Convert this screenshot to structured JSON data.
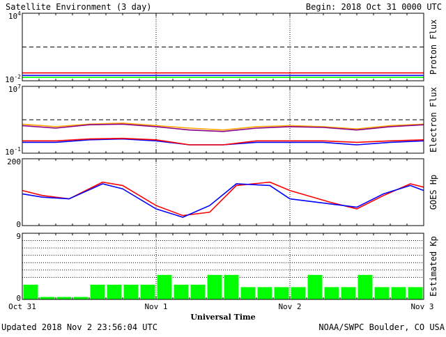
{
  "header": {
    "title": "Satellite Environment (3 day)",
    "begin": "Begin:  2018 Oct 31 0000 UTC"
  },
  "footer": {
    "updated": "Updated 2018 Nov  2 23:56:04 UTC",
    "credit": "NOAA/SWPC Boulder, CO USA"
  },
  "x_axis": {
    "label": "Universal Time",
    "ticks": [
      "Oct 31",
      "Nov 1",
      "Nov 2",
      "Nov 3"
    ]
  },
  "colors": {
    "red": "#ff0000",
    "blue": "#0000ff",
    "green": "#00ff00",
    "orange": "#ffa500",
    "purple": "#8b008b",
    "axis": "#000000"
  },
  "chart_data": [
    {
      "type": "line",
      "panel": "proton",
      "ylabel": "Proton Flux",
      "yscale": "log",
      "ylim": [
        0.01,
        10000
      ],
      "y_tick_labels": [
        {
          "base": "10",
          "exp": "4"
        },
        {
          "base": "10",
          "exp": "-2"
        }
      ],
      "threshold": 10,
      "series": [
        {
          "color": "red",
          "x": [
            0,
            0.5,
            1,
            1.5,
            2,
            2.5,
            3
          ],
          "y": [
            0.05,
            0.05,
            0.05,
            0.05,
            0.05,
            0.05,
            0.05
          ]
        },
        {
          "color": "blue",
          "x": [
            0,
            0.5,
            1,
            1.5,
            2,
            2.5,
            3
          ],
          "y": [
            0.03,
            0.03,
            0.03,
            0.03,
            0.03,
            0.03,
            0.03
          ]
        },
        {
          "color": "green",
          "x": [
            0,
            0.5,
            1,
            1.5,
            2,
            2.5,
            3
          ],
          "y": [
            0.02,
            0.02,
            0.02,
            0.02,
            0.02,
            0.02,
            0.02
          ]
        }
      ]
    },
    {
      "type": "line",
      "panel": "electron",
      "ylabel": "Electron Flux",
      "yscale": "log",
      "ylim": [
        0.1,
        10000000
      ],
      "y_tick_labels": [
        {
          "base": "10",
          "exp": "7"
        },
        {
          "base": "10",
          "exp": "-1"
        }
      ],
      "threshold": 1000,
      "series": [
        {
          "color": "orange",
          "x": [
            0,
            0.25,
            0.5,
            0.75,
            1,
            1.25,
            1.5,
            1.75,
            2,
            2.25,
            2.5,
            2.75,
            3
          ],
          "y": [
            300,
            150,
            300,
            400,
            200,
            100,
            60,
            150,
            200,
            150,
            80,
            200,
            300
          ]
        },
        {
          "color": "purple",
          "x": [
            0,
            0.25,
            0.5,
            0.75,
            1,
            1.25,
            1.5,
            1.75,
            2,
            2.25,
            2.5,
            2.75,
            3
          ],
          "y": [
            200,
            100,
            250,
            300,
            150,
            60,
            40,
            100,
            150,
            120,
            60,
            150,
            250
          ]
        },
        {
          "color": "blue",
          "x": [
            0,
            0.25,
            0.5,
            0.75,
            1,
            1.25,
            1.5,
            1.75,
            2,
            2.25,
            2.5,
            2.75,
            3
          ],
          "y": [
            2,
            2,
            4,
            5,
            3,
            1,
            1,
            2,
            2,
            2,
            1,
            2,
            3
          ]
        },
        {
          "color": "red",
          "x": [
            0,
            0.25,
            0.5,
            0.75,
            1,
            1.25,
            1.5,
            1.75,
            2,
            2.25,
            2.5,
            2.75,
            3
          ],
          "y": [
            3,
            3,
            5,
            6,
            4,
            1,
            1,
            3,
            3,
            3,
            2,
            3,
            4
          ]
        }
      ]
    },
    {
      "type": "line",
      "panel": "hp",
      "ylabel": "GOES Hp",
      "yscale": "linear",
      "ylim": [
        0,
        200
      ],
      "y_tick_labels": [
        "200",
        "0"
      ],
      "series": [
        {
          "color": "red",
          "x": [
            0,
            0.15,
            0.35,
            0.6,
            0.75,
            1,
            1.2,
            1.4,
            1.6,
            1.85,
            2,
            2.3,
            2.5,
            2.7,
            2.9,
            3
          ],
          "y": [
            105,
            90,
            80,
            130,
            120,
            60,
            30,
            40,
            120,
            130,
            105,
            70,
            50,
            90,
            125,
            115
          ]
        },
        {
          "color": "blue",
          "x": [
            0,
            0.15,
            0.35,
            0.6,
            0.75,
            1,
            1.2,
            1.4,
            1.6,
            1.85,
            2,
            2.3,
            2.5,
            2.7,
            2.9,
            3
          ],
          "y": [
            95,
            85,
            80,
            125,
            110,
            50,
            25,
            60,
            125,
            120,
            80,
            65,
            55,
            95,
            120,
            105
          ]
        }
      ]
    },
    {
      "type": "bar",
      "panel": "kp",
      "ylabel": "Estimated Kp",
      "ylim": [
        0,
        9
      ],
      "y_tick_labels": [
        "9",
        "0"
      ],
      "grid_lines": [
        3,
        4,
        5,
        6,
        7,
        8
      ],
      "values": [
        2,
        0.33,
        0.33,
        0.33,
        2,
        2,
        2,
        2,
        3.33,
        2,
        2,
        3.33,
        3.33,
        1.67,
        1.67,
        1.67,
        1.67,
        3.33,
        1.67,
        1.67,
        3.33,
        1.67,
        1.67,
        1.67
      ]
    }
  ]
}
